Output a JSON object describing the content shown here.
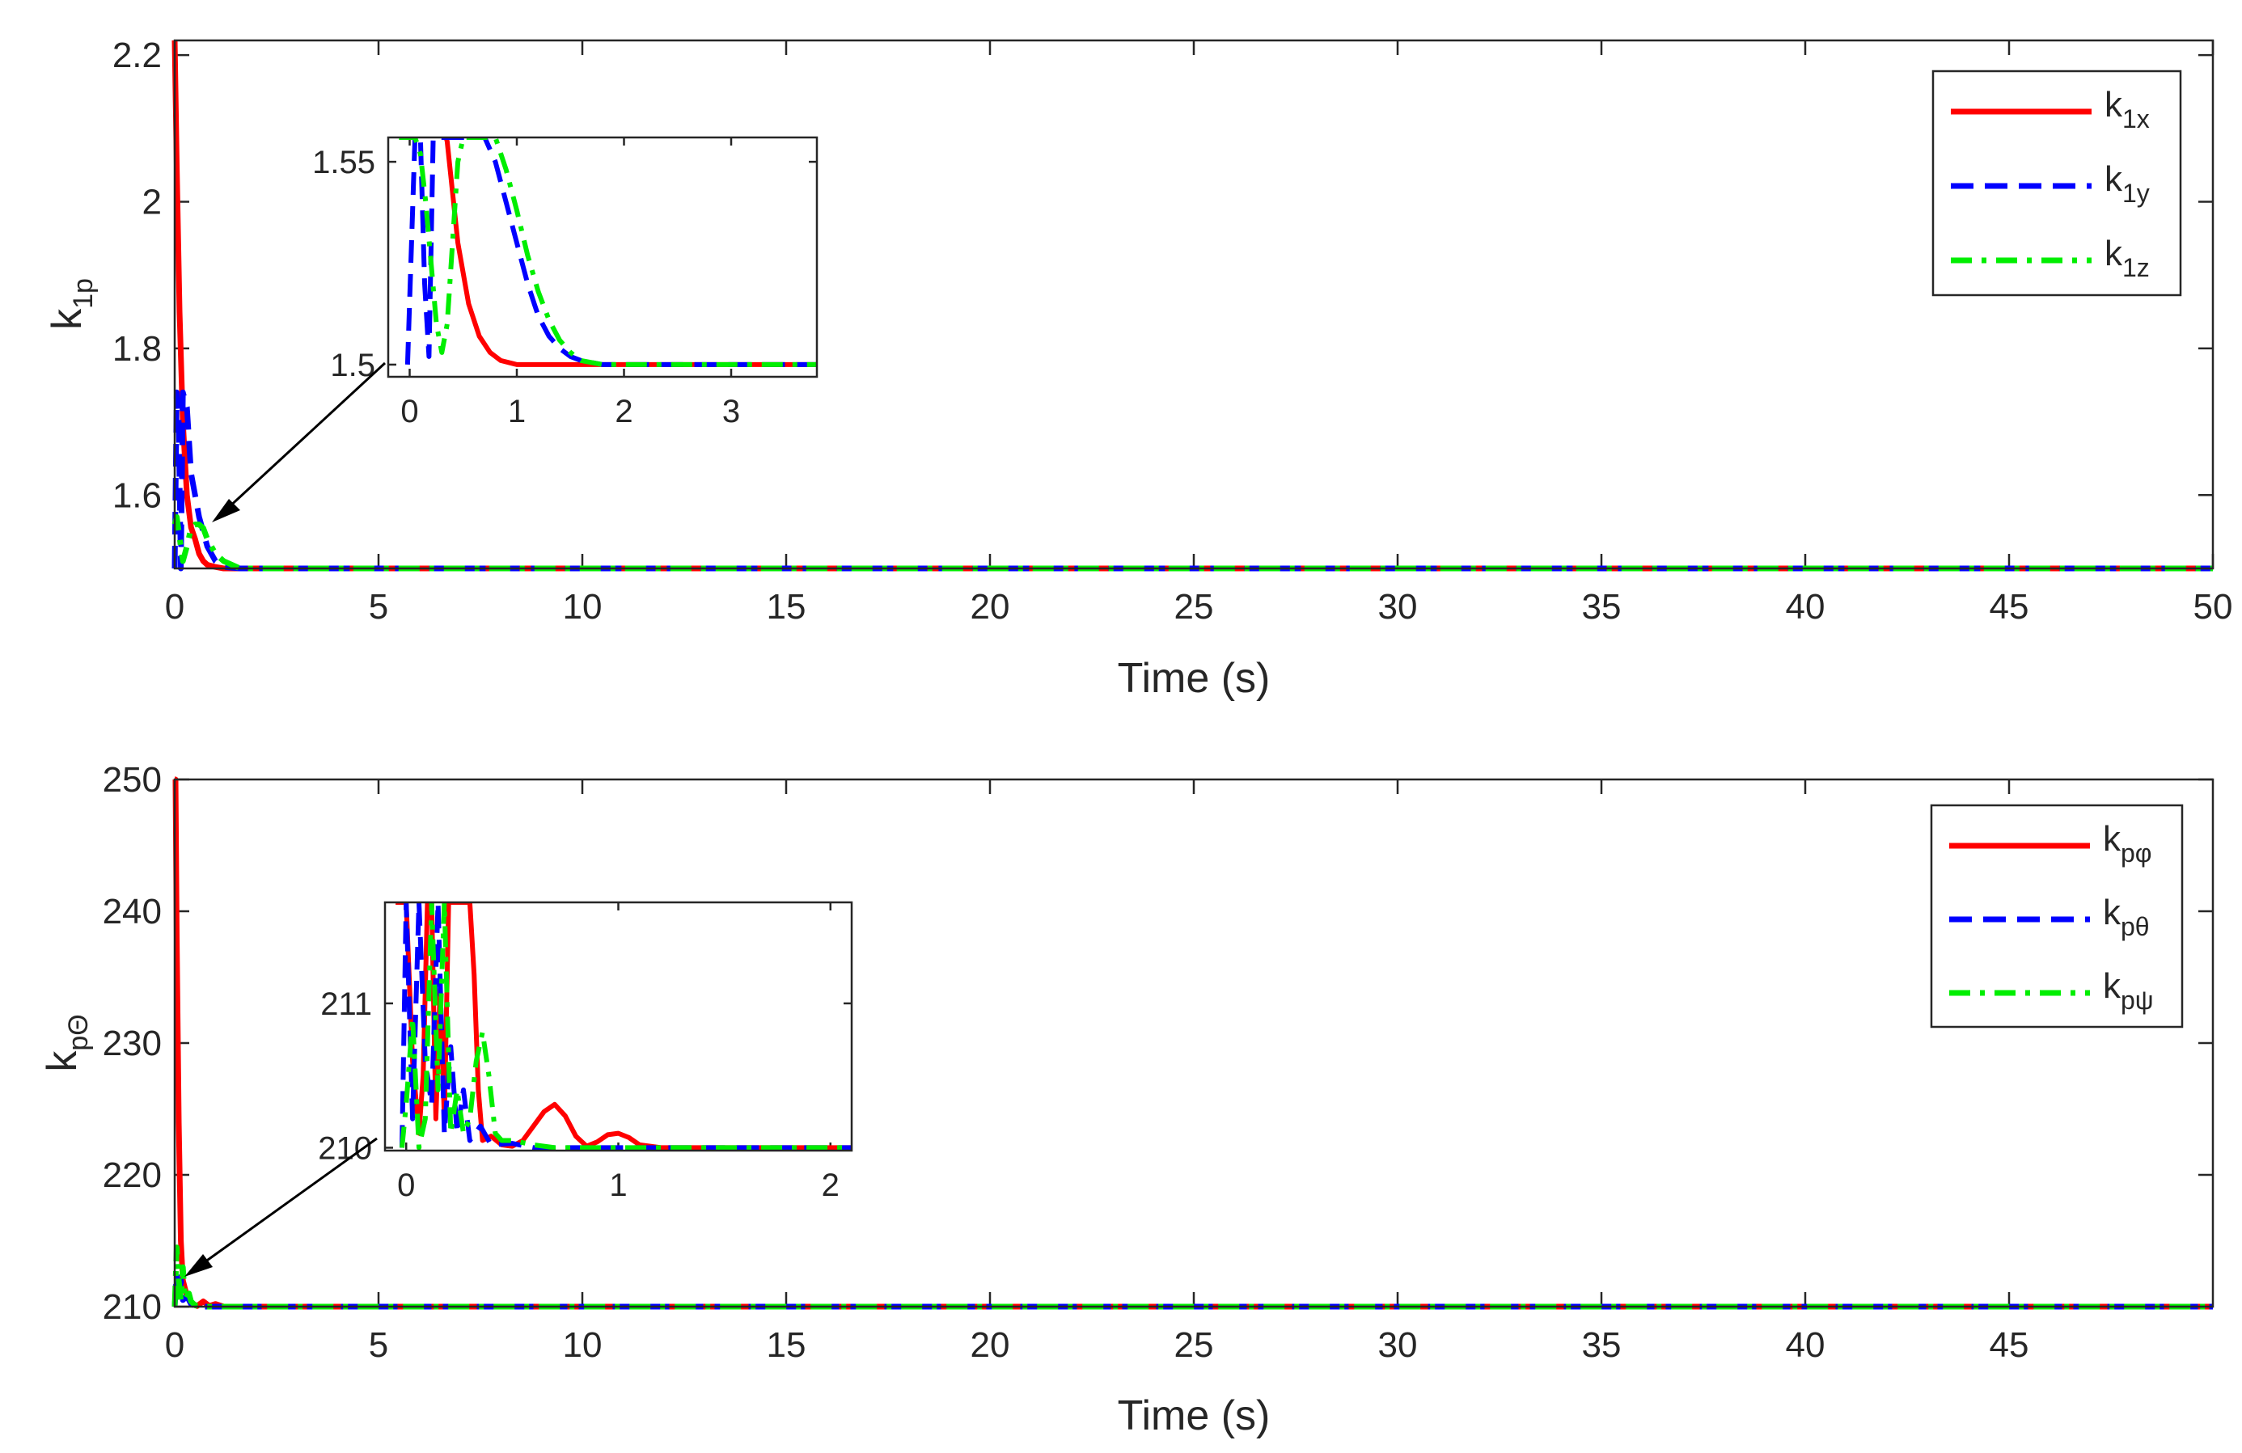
{
  "chart_data": [
    {
      "type": "line",
      "xlabel": "Time (s)",
      "ylabel": {
        "base": "k",
        "sub": "1p"
      },
      "xlim": [
        0,
        50
      ],
      "ylim": [
        1.5,
        2.22
      ],
      "xticks": [
        0,
        5,
        10,
        15,
        20,
        25,
        30,
        35,
        40,
        45,
        50
      ],
      "yticks": [
        1.6,
        1.8,
        2,
        2.2
      ],
      "grid": false,
      "legend_position": "top-right",
      "series": [
        {
          "name": "k1x",
          "label_base": "k",
          "label_sub": "1x",
          "color": "#ff0000",
          "dash": "solid",
          "x": [
            0,
            0.05,
            0.12,
            0.2,
            0.3,
            0.4,
            0.5,
            0.6,
            0.7,
            0.8,
            1.0,
            1.2,
            1.5,
            2,
            50
          ],
          "y": [
            2.22,
            2.05,
            1.85,
            1.7,
            1.6,
            1.556,
            1.54,
            1.52,
            1.51,
            1.505,
            1.502,
            1.5,
            1.5,
            1.5,
            1.5
          ]
        },
        {
          "name": "k1y",
          "label_base": "k",
          "label_sub": "1y",
          "color": "#0000ff",
          "dash": "dash",
          "x": [
            0,
            0.05,
            0.1,
            0.15,
            0.2,
            0.3,
            0.4,
            0.5,
            0.6,
            0.7,
            0.8,
            1.0,
            1.2,
            1.6,
            2,
            50
          ],
          "y": [
            1.5,
            1.74,
            1.7,
            1.5,
            1.74,
            1.72,
            1.63,
            1.6,
            1.57,
            1.55,
            1.53,
            1.51,
            1.502,
            1.5,
            1.5,
            1.5
          ]
        },
        {
          "name": "k1z",
          "label_base": "k",
          "label_sub": "1z",
          "color": "#00ee00",
          "dash": "dashdot",
          "x": [
            0,
            0.05,
            0.1,
            0.15,
            0.2,
            0.3,
            0.4,
            0.5,
            0.6,
            0.7,
            0.8,
            1.0,
            1.2,
            1.6,
            2,
            50
          ],
          "y": [
            1.56,
            1.57,
            1.55,
            1.53,
            1.51,
            1.53,
            1.555,
            1.56,
            1.56,
            1.555,
            1.54,
            1.52,
            1.51,
            1.5,
            1.5,
            1.5
          ]
        }
      ],
      "inset": {
        "xlim": [
          -0.2,
          3.8
        ],
        "ylim": [
          1.497,
          1.556
        ],
        "xticks": [
          0,
          1,
          2,
          3
        ],
        "yticks": [
          1.5,
          1.55
        ],
        "series": [
          {
            "x": [
              0.28,
              0.3,
              0.35,
              0.45,
              0.55,
              0.65,
              0.75,
              0.85,
              1.0,
              1.2,
              1.5,
              2,
              3.8
            ],
            "y": [
              1.556,
              1.56,
              1.555,
              1.53,
              1.515,
              1.507,
              1.503,
              1.501,
              1.5,
              1.5,
              1.5,
              1.5,
              1.5
            ]
          },
          {
            "x": [
              -0.02,
              0.05,
              0.1,
              0.14,
              0.18,
              0.22,
              0.28,
              0.5,
              0.7,
              0.8,
              0.9,
              1.0,
              1.1,
              1.2,
              1.3,
              1.4,
              1.5,
              1.6,
              1.8,
              2,
              3.8
            ],
            "y": [
              1.5,
              1.556,
              1.556,
              1.52,
              1.502,
              1.556,
              1.556,
              1.556,
              1.556,
              1.55,
              1.54,
              1.53,
              1.52,
              1.512,
              1.507,
              1.504,
              1.502,
              1.501,
              1.5,
              1.5,
              1.5
            ]
          },
          {
            "x": [
              -0.1,
              0.0,
              0.05,
              0.1,
              0.15,
              0.2,
              0.25,
              0.3,
              0.35,
              0.4,
              0.45,
              0.5,
              0.55,
              0.6,
              0.7,
              0.8,
              0.9,
              1.0,
              1.1,
              1.2,
              1.3,
              1.4,
              1.5,
              1.6,
              1.8,
              2,
              3.8
            ],
            "y": [
              1.556,
              1.556,
              1.556,
              1.552,
              1.54,
              1.525,
              1.51,
              1.503,
              1.51,
              1.53,
              1.55,
              1.556,
              1.556,
              1.556,
              1.556,
              1.556,
              1.548,
              1.538,
              1.527,
              1.518,
              1.511,
              1.506,
              1.503,
              1.501,
              1.5,
              1.5,
              1.5
            ]
          }
        ]
      }
    },
    {
      "type": "line",
      "xlabel": "Time (s)",
      "ylabel": {
        "base": "k",
        "sub": "pΘ"
      },
      "xlim": [
        0,
        50
      ],
      "ylim": [
        210,
        250
      ],
      "xticks": [
        0,
        5,
        10,
        15,
        20,
        25,
        30,
        35,
        40,
        45
      ],
      "yticks": [
        210,
        220,
        230,
        240,
        250
      ],
      "grid": false,
      "legend_position": "top-right",
      "series": [
        {
          "name": "kpφ",
          "label_base": "k",
          "label_sub": "pφ",
          "color": "#ff0000",
          "dash": "solid",
          "x": [
            0,
            0.02,
            0.05,
            0.1,
            0.15,
            0.2,
            0.3,
            0.4,
            0.55,
            0.7,
            0.85,
            1.0,
            1.2,
            50
          ],
          "y": [
            250,
            250,
            238,
            224,
            215,
            212,
            210.8,
            210.3,
            210.05,
            210.4,
            210.05,
            210.2,
            210,
            210
          ]
        },
        {
          "name": "kpθ",
          "label_base": "k",
          "label_sub": "pθ",
          "color": "#0000ff",
          "dash": "dash",
          "x": [
            0,
            0.05,
            0.1,
            0.15,
            0.2,
            0.3,
            0.4,
            0.5,
            0.7,
            1.0,
            50
          ],
          "y": [
            210,
            212.5,
            210.2,
            212,
            210.5,
            210.8,
            210.2,
            210.05,
            210,
            210,
            210
          ]
        },
        {
          "name": "kpψ",
          "label_base": "k",
          "label_sub": "pψ",
          "color": "#00ee00",
          "dash": "dashdot",
          "x": [
            0,
            0.05,
            0.1,
            0.15,
            0.2,
            0.25,
            0.3,
            0.35,
            0.4,
            0.5,
            0.6,
            0.8,
            1.0,
            50
          ],
          "y": [
            210,
            214.5,
            212,
            210.5,
            213,
            210.5,
            210.8,
            211,
            210.4,
            210.1,
            210.05,
            210,
            210,
            210
          ]
        }
      ],
      "inset": {
        "xlim": [
          -0.1,
          2.1
        ],
        "ylim": [
          209.98,
          211.7
        ],
        "xticks": [
          0,
          1,
          2
        ],
        "yticks": [
          210,
          211
        ],
        "series": [
          {
            "x": [
              -0.05,
              -0.02,
              0.0,
              0.03,
              0.06,
              0.08,
              0.1,
              0.12,
              0.14,
              0.16,
              0.18,
              0.2,
              0.22,
              0.24,
              0.26,
              0.28,
              0.3,
              0.32,
              0.34,
              0.36,
              0.4,
              0.45,
              0.5,
              0.55,
              0.6,
              0.65,
              0.7,
              0.75,
              0.8,
              0.85,
              0.9,
              0.95,
              1.0,
              1.05,
              1.1,
              1.2,
              1.4,
              2.1
            ],
            "y": [
              211.7,
              211.7,
              211.7,
              210.6,
              210.1,
              210.5,
              211.7,
              211.7,
              210.2,
              211.1,
              210.2,
              211.7,
              211.7,
              211.7,
              211.7,
              211.7,
              211.7,
              211.2,
              210.4,
              210.05,
              210.08,
              210.02,
              210.01,
              210.05,
              210.15,
              210.25,
              210.3,
              210.22,
              210.08,
              210.01,
              210.04,
              210.09,
              210.1,
              210.07,
              210.02,
              210,
              210,
              210
            ]
          },
          {
            "x": [
              -0.02,
              0.0,
              0.03,
              0.06,
              0.09,
              0.12,
              0.15,
              0.18,
              0.21,
              0.24,
              0.27,
              0.3,
              0.35,
              0.4,
              0.5,
              0.6,
              2.1
            ],
            "y": [
              210.0,
              211.7,
              210.2,
              211.7,
              210.6,
              210.3,
              211.7,
              210.1,
              210.7,
              210.1,
              210.4,
              210.05,
              210.15,
              210.02,
              210.03,
              210,
              210
            ]
          },
          {
            "x": [
              -0.02,
              0.0,
              0.03,
              0.06,
              0.09,
              0.12,
              0.15,
              0.18,
              0.21,
              0.24,
              0.27,
              0.3,
              0.33,
              0.36,
              0.39,
              0.42,
              0.45,
              0.5,
              0.6,
              0.7,
              2.1
            ],
            "y": [
              210.0,
              210.3,
              210.9,
              210.0,
              210.2,
              211.7,
              210.4,
              211.7,
              210.1,
              210.4,
              210.1,
              210.2,
              210.6,
              210.8,
              210.5,
              210.1,
              210.05,
              210.05,
              210.02,
              210,
              210
            ]
          }
        ]
      }
    }
  ]
}
